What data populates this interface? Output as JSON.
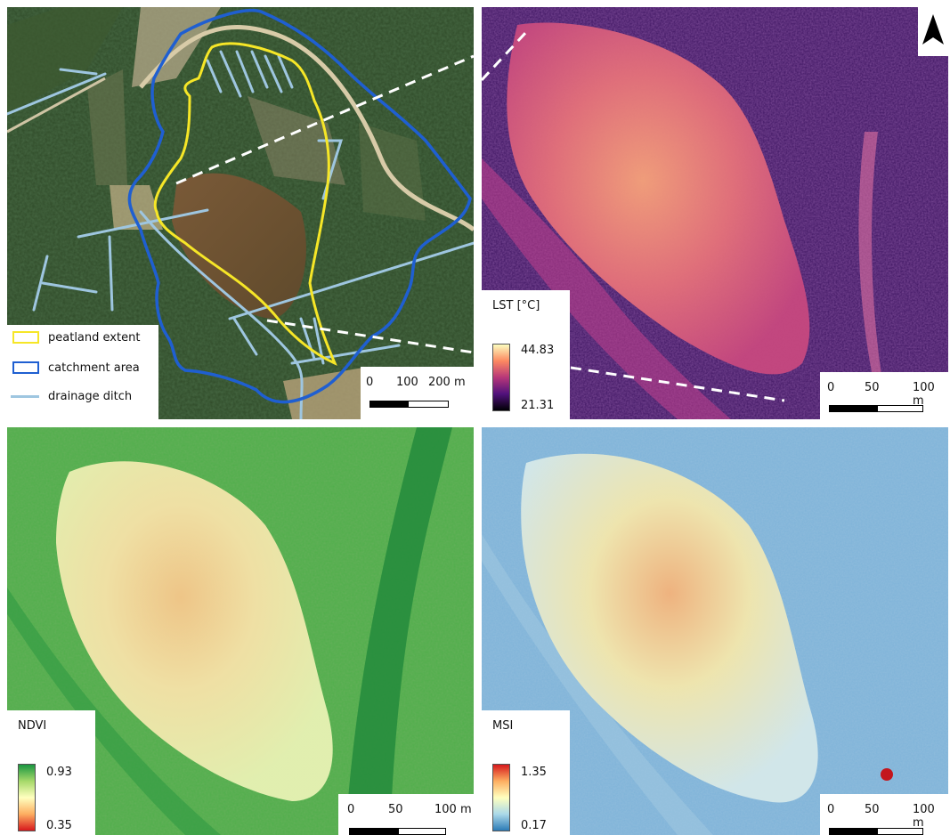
{
  "panels": {
    "aerial": {
      "legend": {
        "items": [
          {
            "label": "peatland extent",
            "color": "#f6e627"
          },
          {
            "label": "catchment area",
            "color": "#1f5fd1"
          },
          {
            "label": "drainage ditch",
            "color": "#9ec6e0"
          }
        ]
      },
      "scale": {
        "ticks": [
          "0",
          "100",
          "200 m"
        ]
      }
    },
    "lst": {
      "legend": {
        "title": "LST [°C]",
        "max": "44.83",
        "min": "21.31"
      },
      "scale": {
        "ticks": [
          "0",
          "50",
          "100 m"
        ]
      },
      "north_arrow": "north-arrow-icon"
    },
    "ndvi": {
      "legend": {
        "title": "NDVI",
        "max": "0.93",
        "min": "0.35"
      },
      "scale": {
        "ticks": [
          "0",
          "50",
          "100 m"
        ]
      }
    },
    "msi": {
      "legend": {
        "title": "MSI",
        "max": "1.35",
        "min": "0.17"
      },
      "scale": {
        "ticks": [
          "0",
          "50",
          "100 m"
        ]
      }
    }
  }
}
